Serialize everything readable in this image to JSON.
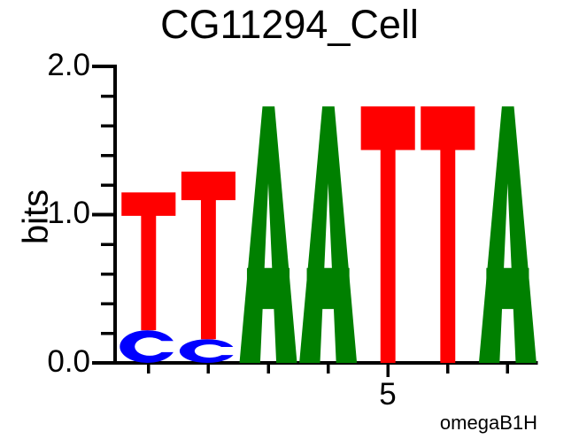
{
  "title": "CG11294_Cell",
  "y_axis": {
    "label": "bits",
    "tick_labels": [
      "2.0",
      "1.0",
      "0.0"
    ],
    "major_ticks": [
      2.0,
      1.0,
      0.0
    ],
    "minor_step": 0.2,
    "range": [
      0,
      2
    ]
  },
  "x_axis": {
    "tick_label": "5",
    "labeled_position": 5,
    "num_positions": 7
  },
  "credit": "omegaB1H",
  "colors": {
    "A": "#008000",
    "C": "#0000ff",
    "T": "#ff0000",
    "axis": "#000000",
    "background": "#ffffff"
  },
  "chart_data": {
    "type": "sequence-logo",
    "title": "CG11294_Cell",
    "ylabel": "bits",
    "ylim": [
      0,
      2
    ],
    "xlabel_tick": "5",
    "consensus": "TTAATTA",
    "positions": [
      {
        "position": 1,
        "stack": [
          {
            "base": "C",
            "bits": 0.22
          },
          {
            "base": "T",
            "bits": 0.93
          }
        ]
      },
      {
        "position": 2,
        "stack": [
          {
            "base": "C",
            "bits": 0.16
          },
          {
            "base": "T",
            "bits": 1.13
          }
        ]
      },
      {
        "position": 3,
        "stack": [
          {
            "base": "A",
            "bits": 1.73
          }
        ]
      },
      {
        "position": 4,
        "stack": [
          {
            "base": "A",
            "bits": 1.73
          }
        ]
      },
      {
        "position": 5,
        "stack": [
          {
            "base": "T",
            "bits": 1.73
          }
        ]
      },
      {
        "position": 6,
        "stack": [
          {
            "base": "T",
            "bits": 1.73
          }
        ]
      },
      {
        "position": 7,
        "stack": [
          {
            "base": "A",
            "bits": 1.73
          }
        ]
      }
    ]
  }
}
